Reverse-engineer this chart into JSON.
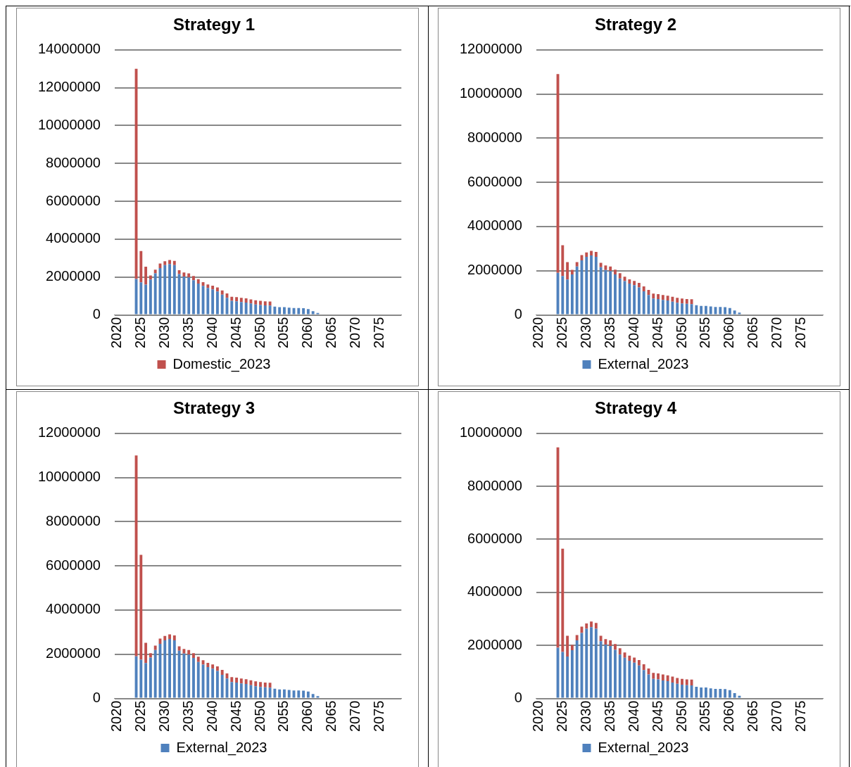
{
  "chart_data": [
    {
      "type": "bar",
      "title": "Strategy 1",
      "stacked": true,
      "grid": "y",
      "legend": "bottom",
      "ylim": [
        0,
        14000000
      ],
      "yticks": [
        0,
        2000000,
        4000000,
        6000000,
        8000000,
        10000000,
        12000000,
        14000000
      ],
      "categories": [
        "2020",
        null,
        null,
        null,
        null,
        "2025",
        null,
        null,
        null,
        null,
        "2030",
        null,
        null,
        null,
        null,
        "2035",
        null,
        null,
        null,
        null,
        "2040",
        null,
        null,
        null,
        null,
        "2045",
        null,
        null,
        null,
        null,
        "2050",
        null,
        null,
        null,
        null,
        "2055",
        null,
        null,
        null,
        null,
        "2060",
        null,
        null,
        null,
        null,
        "2065",
        null,
        null,
        null,
        null,
        "2070",
        null,
        null,
        null,
        null,
        "2075",
        null,
        null,
        null,
        null
      ],
      "series": [
        {
          "color": "#4f81bd",
          "values": [
            null,
            null,
            null,
            null,
            1900000,
            1720000,
            1600000,
            1870000,
            2190000,
            2470000,
            2630000,
            2690000,
            2630000,
            2160000,
            2030000,
            1980000,
            1830000,
            1650000,
            1530000,
            1420000,
            1350000,
            1240000,
            1070000,
            900000,
            740000,
            720000,
            680000,
            650000,
            600000,
            550000,
            520000,
            500000,
            490000,
            440000,
            410000,
            410000,
            380000,
            360000,
            360000,
            350000,
            310000,
            200000,
            100000,
            null,
            null,
            null,
            null,
            null,
            null,
            null,
            null,
            null,
            null,
            null,
            null,
            null,
            null,
            null,
            null,
            null
          ]
        },
        {
          "name": "Domestic_2023",
          "color": "#c0504d",
          "values": [
            null,
            null,
            null,
            null,
            11100000,
            1650000,
            950000,
            210000,
            200000,
            240000,
            200000,
            210000,
            220000,
            200000,
            210000,
            210000,
            220000,
            240000,
            200000,
            190000,
            190000,
            210000,
            220000,
            230000,
            220000,
            220000,
            220000,
            220000,
            220000,
            220000,
            220000,
            220000,
            220000,
            null,
            null,
            null,
            null,
            null,
            null,
            null,
            null,
            null,
            null,
            null,
            null,
            null,
            null,
            null,
            null,
            null,
            null,
            null,
            null,
            null,
            null,
            null,
            null,
            null,
            null,
            null
          ]
        }
      ]
    },
    {
      "type": "bar",
      "title": "Strategy 2",
      "stacked": true,
      "grid": "y",
      "legend": "bottom",
      "ylim": [
        0,
        12000000
      ],
      "yticks": [
        0,
        2000000,
        4000000,
        6000000,
        8000000,
        10000000,
        12000000
      ],
      "categories": [
        "2020",
        null,
        null,
        null,
        null,
        "2025",
        null,
        null,
        null,
        null,
        "2030",
        null,
        null,
        null,
        null,
        "2035",
        null,
        null,
        null,
        null,
        "2040",
        null,
        null,
        null,
        null,
        "2045",
        null,
        null,
        null,
        null,
        "2050",
        null,
        null,
        null,
        null,
        "2055",
        null,
        null,
        null,
        null,
        "2060",
        null,
        null,
        null,
        null,
        "2065",
        null,
        null,
        null,
        null,
        "2070",
        null,
        null,
        null,
        null,
        "2075",
        null,
        null,
        null,
        null
      ],
      "series": [
        {
          "name": "External_2023",
          "color": "#4f81bd",
          "values": [
            null,
            null,
            null,
            null,
            1900000,
            1760000,
            1600000,
            1830000,
            2190000,
            2470000,
            2630000,
            2690000,
            2630000,
            2160000,
            2030000,
            1980000,
            1830000,
            1650000,
            1530000,
            1420000,
            1350000,
            1240000,
            1070000,
            900000,
            740000,
            720000,
            680000,
            650000,
            600000,
            550000,
            520000,
            500000,
            490000,
            440000,
            410000,
            410000,
            380000,
            360000,
            360000,
            350000,
            310000,
            200000,
            100000,
            null,
            null,
            null,
            null,
            null,
            null,
            null,
            null,
            null,
            null,
            null,
            null,
            null,
            null,
            null,
            null,
            null
          ]
        },
        {
          "color": "#c0504d",
          "values": [
            null,
            null,
            null,
            null,
            9000000,
            1390000,
            790000,
            210000,
            200000,
            240000,
            200000,
            210000,
            220000,
            200000,
            210000,
            210000,
            220000,
            240000,
            200000,
            190000,
            190000,
            210000,
            220000,
            230000,
            220000,
            220000,
            220000,
            220000,
            220000,
            220000,
            220000,
            220000,
            220000,
            null,
            null,
            null,
            null,
            null,
            null,
            null,
            null,
            null,
            null,
            null,
            null,
            null,
            null,
            null,
            null,
            null,
            null,
            null,
            null,
            null,
            null,
            null,
            null,
            null,
            null,
            null
          ]
        }
      ]
    },
    {
      "type": "bar",
      "title": "Strategy 3",
      "stacked": true,
      "grid": "y",
      "legend": "bottom",
      "ylim": [
        0,
        12000000
      ],
      "yticks": [
        0,
        2000000,
        4000000,
        6000000,
        8000000,
        10000000,
        12000000
      ],
      "categories": [
        "2020",
        null,
        null,
        null,
        null,
        "2025",
        null,
        null,
        null,
        null,
        "2030",
        null,
        null,
        null,
        null,
        "2035",
        null,
        null,
        null,
        null,
        "2040",
        null,
        null,
        null,
        null,
        "2045",
        null,
        null,
        null,
        null,
        "2050",
        null,
        null,
        null,
        null,
        "2055",
        null,
        null,
        null,
        null,
        "2060",
        null,
        null,
        null,
        null,
        "2065",
        null,
        null,
        null,
        null,
        "2070",
        null,
        null,
        null,
        null,
        "2075",
        null,
        null,
        null,
        null
      ],
      "series": [
        {
          "name": "External_2023",
          "color": "#4f81bd",
          "values": [
            null,
            null,
            null,
            null,
            1900000,
            1750000,
            1600000,
            1850000,
            2190000,
            2470000,
            2630000,
            2690000,
            2630000,
            2160000,
            2030000,
            1980000,
            1830000,
            1650000,
            1530000,
            1420000,
            1350000,
            1240000,
            1070000,
            900000,
            740000,
            720000,
            680000,
            650000,
            600000,
            550000,
            520000,
            500000,
            490000,
            440000,
            410000,
            410000,
            380000,
            360000,
            360000,
            350000,
            310000,
            200000,
            100000,
            null,
            null,
            null,
            null,
            null,
            null,
            null,
            null,
            null,
            null,
            null,
            null,
            null,
            null,
            null,
            null,
            null
          ]
        },
        {
          "color": "#c0504d",
          "values": [
            null,
            null,
            null,
            null,
            9100000,
            4750000,
            920000,
            200000,
            200000,
            240000,
            200000,
            210000,
            220000,
            200000,
            210000,
            210000,
            220000,
            240000,
            200000,
            190000,
            190000,
            210000,
            220000,
            230000,
            220000,
            220000,
            220000,
            220000,
            220000,
            220000,
            220000,
            220000,
            220000,
            null,
            null,
            null,
            null,
            null,
            null,
            null,
            null,
            null,
            null,
            null,
            null,
            null,
            null,
            null,
            null,
            null,
            null,
            null,
            null,
            null,
            null,
            null,
            null,
            null,
            null,
            null
          ]
        }
      ]
    },
    {
      "type": "bar",
      "title": "Strategy 4",
      "stacked": true,
      "grid": "y",
      "legend": "bottom",
      "ylim": [
        0,
        10000000
      ],
      "yticks": [
        0,
        2000000,
        4000000,
        6000000,
        8000000,
        10000000
      ],
      "categories": [
        "2020",
        null,
        null,
        null,
        null,
        "2025",
        null,
        null,
        null,
        null,
        "2030",
        null,
        null,
        null,
        null,
        "2035",
        null,
        null,
        null,
        null,
        "2040",
        null,
        null,
        null,
        null,
        "2045",
        null,
        null,
        null,
        null,
        "2050",
        null,
        null,
        null,
        null,
        "2055",
        null,
        null,
        null,
        null,
        "2060",
        null,
        null,
        null,
        null,
        "2065",
        null,
        null,
        null,
        null,
        "2070",
        null,
        null,
        null,
        null,
        "2075",
        null,
        null,
        null,
        null
      ],
      "series": [
        {
          "name": "External_2023",
          "color": "#4f81bd",
          "values": [
            null,
            null,
            null,
            null,
            1910000,
            1750000,
            1580000,
            1820000,
            2190000,
            2470000,
            2630000,
            2690000,
            2630000,
            2160000,
            2030000,
            1980000,
            1830000,
            1650000,
            1530000,
            1420000,
            1350000,
            1240000,
            1070000,
            900000,
            740000,
            720000,
            680000,
            650000,
            600000,
            550000,
            520000,
            500000,
            490000,
            440000,
            410000,
            410000,
            380000,
            360000,
            360000,
            350000,
            310000,
            200000,
            100000,
            null,
            null,
            null,
            null,
            null,
            null,
            null,
            null,
            null,
            null,
            null,
            null,
            null,
            null,
            null,
            null,
            null
          ]
        },
        {
          "color": "#c0504d",
          "values": [
            null,
            null,
            null,
            null,
            7560000,
            3900000,
            780000,
            200000,
            200000,
            240000,
            200000,
            210000,
            220000,
            200000,
            210000,
            210000,
            220000,
            240000,
            200000,
            190000,
            190000,
            210000,
            220000,
            230000,
            220000,
            220000,
            220000,
            220000,
            220000,
            220000,
            220000,
            220000,
            220000,
            null,
            null,
            null,
            null,
            null,
            null,
            null,
            null,
            null,
            null,
            null,
            null,
            null,
            null,
            null,
            null,
            null,
            null,
            null,
            null,
            null,
            null,
            null,
            null,
            null,
            null,
            null
          ]
        }
      ]
    }
  ]
}
